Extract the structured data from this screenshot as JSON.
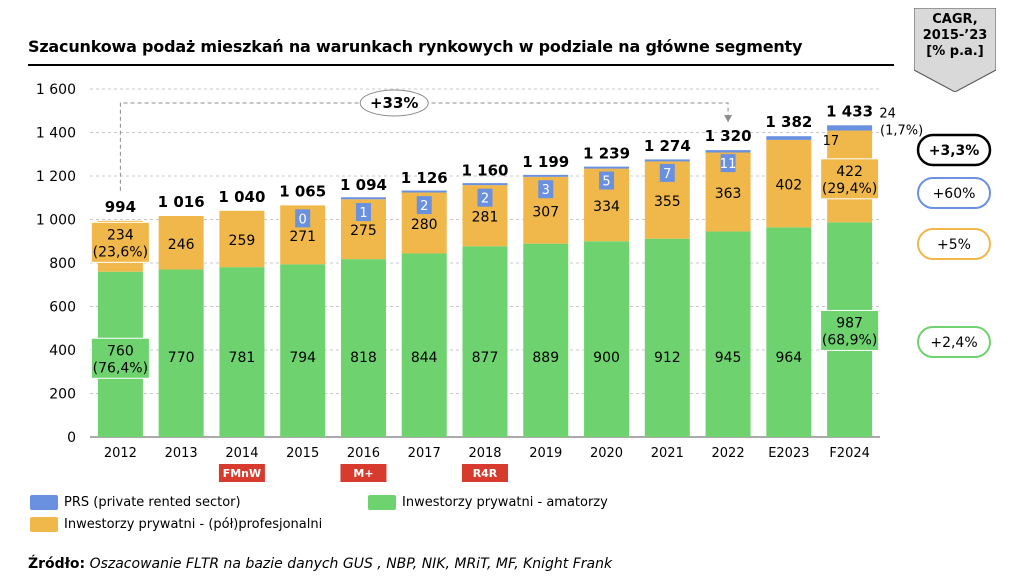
{
  "title": "Szacunkowa podaż mieszkań na warunkach rynkowych w podziale na główne segmenty",
  "cagr_header": [
    "CAGR,",
    "2015-’23",
    "[% p.a.]"
  ],
  "growth_label": "+33%",
  "colors": {
    "green": "#6ed36e",
    "orange": "#f0b84a",
    "blue": "#6a90e0",
    "badge": "#d73b2e"
  },
  "chart_data": {
    "type": "bar",
    "stacked": true,
    "categories": [
      "2012",
      "2013",
      "2014",
      "2015",
      "2016",
      "2017",
      "2018",
      "2019",
      "2020",
      "2021",
      "2022",
      "E2023",
      "F2024"
    ],
    "series": [
      {
        "name": "Inwestorzy prywatni - amatorzy",
        "values": [
          760,
          770,
          781,
          794,
          818,
          844,
          877,
          889,
          900,
          912,
          945,
          964,
          987
        ]
      },
      {
        "name": "Inwestorzy prywatni - (pół)profesjonalni",
        "values": [
          234,
          246,
          259,
          271,
          275,
          280,
          281,
          307,
          334,
          355,
          363,
          402,
          422
        ]
      },
      {
        "name": "PRS (private rented sector)",
        "values": [
          null,
          null,
          null,
          0,
          1,
          2,
          2,
          3,
          5,
          7,
          11,
          17,
          24
        ]
      }
    ],
    "totals": [
      "994",
      "1 016",
      "1 040",
      "1 065",
      "1 094",
      "1 126",
      "1 160",
      "1 199",
      "1 239",
      "1 274",
      "1 320",
      "1 382",
      "1 433"
    ],
    "share_labels": {
      "green_2012": "(76,4%)",
      "orange_2012": "(23,6%)",
      "green_F2024": "(68,9%)",
      "orange_F2024": "(29,4%)",
      "blue_F2024": "(1,7%)"
    },
    "y_ticks": [
      "0",
      "200",
      "400",
      "600",
      "800",
      "1 000",
      "1 200",
      "1 400",
      "1 600"
    ],
    "ylim": [
      0,
      1600
    ],
    "grid": true,
    "legend_placement": "bottom-left",
    "cagr": [
      {
        "label": "+3,3%",
        "color": "#000000"
      },
      {
        "label": "+60%",
        "color": "#6a90e0"
      },
      {
        "label": "+5%",
        "color": "#f0b84a"
      },
      {
        "label": "+2,4%",
        "color": "#6ed36e"
      }
    ],
    "badges": [
      {
        "label": "FMnW",
        "category": "2014"
      },
      {
        "label": "M+",
        "category": "2016"
      },
      {
        "label": "R4R",
        "category": "2018"
      }
    ]
  },
  "legend": [
    {
      "label": "PRS (private rented sector)",
      "color": "#6a90e0"
    },
    {
      "label": "Inwestorzy prywatni - amatorzy",
      "color": "#6ed36e"
    },
    {
      "label": "Inwestorzy prywatni - (pół)profesjonalni",
      "color": "#f0b84a"
    }
  ],
  "source": {
    "label": "Źródło:",
    "text": "Oszacowanie FLTR na bazie danych GUS , NBP, NIK, MRiT, MF, Knight Frank"
  }
}
